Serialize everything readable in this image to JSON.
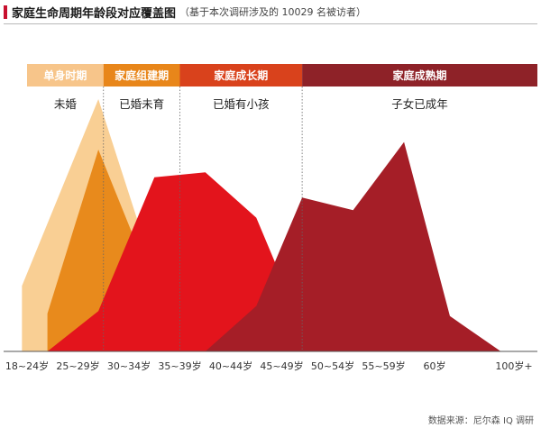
{
  "header": {
    "title": "家庭生命周期年龄段对应覆盖图",
    "subtitle": "（基于本次调研涉及的 10029 名被访者）"
  },
  "source": "数据来源：尼尔森 IQ 调研",
  "colors": {
    "accent": "#c8102e",
    "stages": [
      "#f7c58a",
      "#e8861a",
      "#d9421c",
      "#8e2228"
    ],
    "series": [
      "#f9cf94",
      "#e88a1c",
      "#e3141c",
      "#a51e27"
    ]
  },
  "chart_data": {
    "type": "area",
    "x_ticks": [
      "18~24岁",
      "25~29岁",
      "30~34岁",
      "35~39岁",
      "40~44岁",
      "45~49岁",
      "50~54岁",
      "55~59岁",
      "60岁",
      "100岁+"
    ],
    "stages": [
      {
        "label": "单身时期",
        "status": "未婚",
        "span": [
          0,
          1.5
        ]
      },
      {
        "label": "家庭组建期",
        "status": "已婚未育",
        "span": [
          1.5,
          3
        ]
      },
      {
        "label": "家庭成长期",
        "status": "已婚有小孩",
        "span": [
          3,
          5.4
        ]
      },
      {
        "label": "家庭成熟期",
        "status": "子女已成年",
        "span": [
          5.4,
          10.7
        ]
      }
    ],
    "series": [
      {
        "values": [
          [
            -0.1,
            0.26
          ],
          [
            1.4,
            1.0
          ],
          [
            3.0,
            0.0
          ]
        ]
      },
      {
        "values": [
          [
            0.4,
            0.0
          ],
          [
            0.4,
            0.15
          ],
          [
            1.4,
            0.8
          ],
          [
            3.0,
            0.0
          ]
        ]
      },
      {
        "values": [
          [
            0.4,
            0.0
          ],
          [
            1.4,
            0.16
          ],
          [
            2.5,
            0.69
          ],
          [
            3.5,
            0.71
          ],
          [
            4.5,
            0.53
          ],
          [
            5.6,
            0.0
          ]
        ]
      },
      {
        "values": [
          [
            3.5,
            0.0
          ],
          [
            4.5,
            0.18
          ],
          [
            5.4,
            0.61
          ],
          [
            6.4,
            0.56
          ],
          [
            7.4,
            0.83
          ],
          [
            8.3,
            0.14
          ],
          [
            9.3,
            0.0
          ]
        ]
      }
    ],
    "ylim": [
      0,
      1
    ],
    "grid": false,
    "legend": "none"
  }
}
